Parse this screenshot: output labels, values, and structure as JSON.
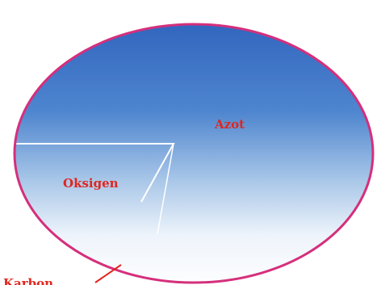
{
  "labels": [
    "Azot",
    "Oksigen",
    "Karbon"
  ]
}
